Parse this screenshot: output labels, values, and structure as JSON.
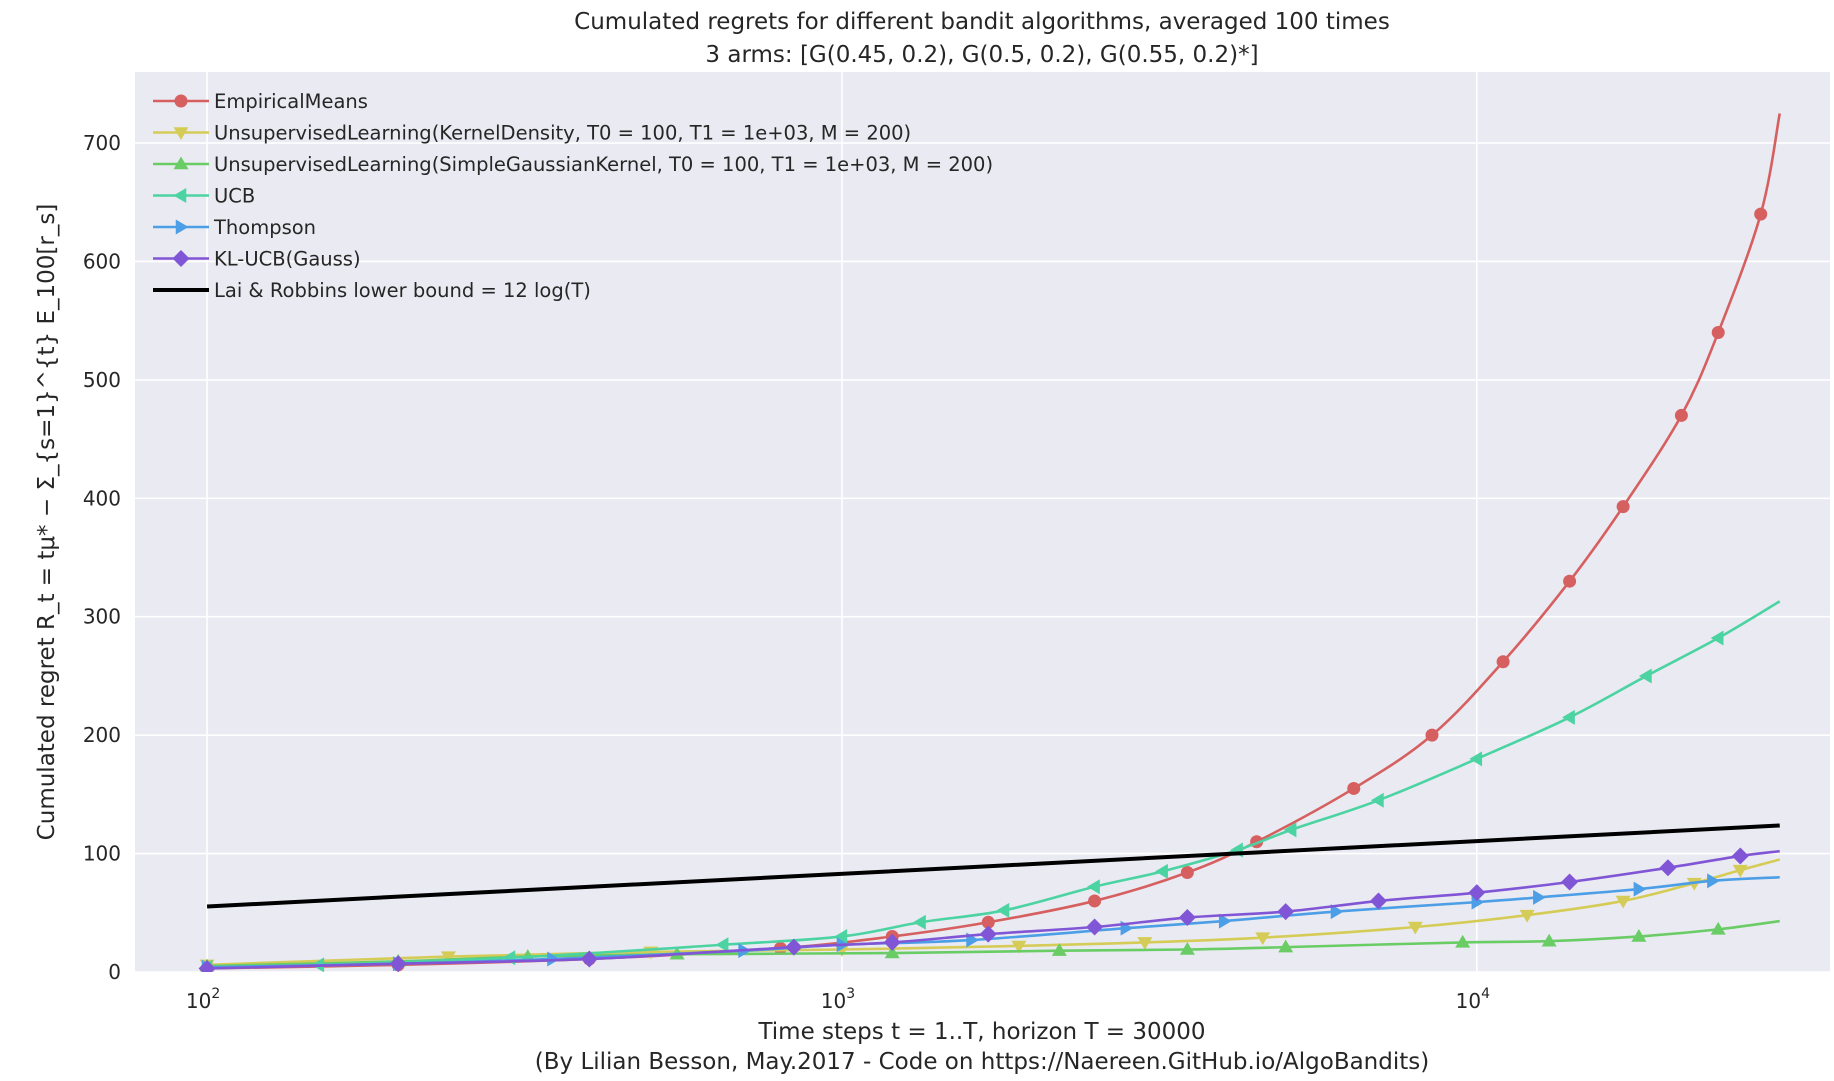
{
  "chart_data": {
    "type": "line",
    "title": "Cumulated regrets for different bandit algorithms, averaged 100 times",
    "subtitle": "3 arms: [G(0.45, 0.2), G(0.5, 0.2), G(0.55, 0.2)*]",
    "xlabel": "Time steps t = 1..T, horizon T = 30000",
    "xlabel_note": "(By Lilian Besson, May.2017 - Code on https://Naereen.GitHub.io/AlgoBandits)",
    "ylabel": "Cumulated regret R_t = tμ* − Σ_{s=1}^{t} E_100[r_s]",
    "x_scale": "log",
    "xlim": [
      77,
      36000
    ],
    "ylim": [
      0,
      760
    ],
    "x_ticks": [
      {
        "value": 100,
        "base": "10",
        "exp": "2"
      },
      {
        "value": 1000,
        "base": "10",
        "exp": "3"
      },
      {
        "value": 10000,
        "base": "10",
        "exp": "4"
      }
    ],
    "y_ticks": [
      0,
      100,
      200,
      300,
      400,
      500,
      600,
      700
    ],
    "grid": true,
    "legend_position": "top-left",
    "series": [
      {
        "name": "EmpiricalMeans",
        "color": "#D65F5F",
        "marker": "circle",
        "points": [
          [
            100,
            3
          ],
          [
            200,
            6
          ],
          [
            400,
            11
          ],
          [
            800,
            20
          ],
          [
            1200,
            30
          ],
          [
            1700,
            42
          ],
          [
            2500,
            60
          ],
          [
            3500,
            84
          ],
          [
            4500,
            110
          ],
          [
            6400,
            155
          ],
          [
            8500,
            200
          ],
          [
            11000,
            262
          ],
          [
            14000,
            330
          ],
          [
            17000,
            393
          ],
          [
            21000,
            470
          ],
          [
            24000,
            540
          ],
          [
            28000,
            640
          ],
          [
            30000,
            725
          ]
        ]
      },
      {
        "name": "UnsupervisedLearning(KernelDensity, T0 = 100, T1 = 1e+03, M = 200)",
        "color": "#D5CC57",
        "marker": "triangle-down",
        "points": [
          [
            100,
            6
          ],
          [
            240,
            13
          ],
          [
            500,
            17
          ],
          [
            1000,
            19
          ],
          [
            1900,
            22
          ],
          [
            3000,
            25
          ],
          [
            4600,
            29
          ],
          [
            8000,
            38
          ],
          [
            12000,
            48
          ],
          [
            17000,
            60
          ],
          [
            22000,
            75
          ],
          [
            26000,
            86
          ],
          [
            30000,
            95
          ]
        ]
      },
      {
        "name": "UnsupervisedLearning(SimpleGaussianKernel, T0 = 100, T1 = 1e+03, M = 200)",
        "color": "#6ACC65",
        "marker": "triangle-up",
        "points": [
          [
            100,
            5
          ],
          [
            200,
            9
          ],
          [
            320,
            13
          ],
          [
            550,
            15
          ],
          [
            1200,
            16
          ],
          [
            2200,
            18
          ],
          [
            3500,
            19
          ],
          [
            5000,
            21
          ],
          [
            9500,
            25
          ],
          [
            13000,
            26
          ],
          [
            18000,
            30
          ],
          [
            24000,
            36
          ],
          [
            30000,
            43
          ]
        ]
      },
      {
        "name": "UCB",
        "color": "#4CD3A2",
        "marker": "triangle-left",
        "points": [
          [
            100,
            4
          ],
          [
            150,
            6
          ],
          [
            300,
            12
          ],
          [
            650,
            23
          ],
          [
            1000,
            30
          ],
          [
            1330,
            42
          ],
          [
            1800,
            52
          ],
          [
            2500,
            72
          ],
          [
            3200,
            85
          ],
          [
            4200,
            103
          ],
          [
            5100,
            120
          ],
          [
            7000,
            145
          ],
          [
            10000,
            180
          ],
          [
            14000,
            215
          ],
          [
            18500,
            250
          ],
          [
            24000,
            282
          ],
          [
            30000,
            313
          ]
        ]
      },
      {
        "name": "Thompson",
        "color": "#4C9FE6",
        "marker": "triangle-right",
        "points": [
          [
            100,
            4
          ],
          [
            200,
            7
          ],
          [
            350,
            11
          ],
          [
            700,
            18
          ],
          [
            1000,
            23
          ],
          [
            1600,
            27
          ],
          [
            2800,
            37
          ],
          [
            4000,
            43
          ],
          [
            6000,
            51
          ],
          [
            10000,
            59
          ],
          [
            12500,
            63
          ],
          [
            18000,
            70
          ],
          [
            23500,
            77
          ],
          [
            30000,
            80
          ]
        ]
      },
      {
        "name": "KL-UCB(Gauss)",
        "color": "#8156D6",
        "marker": "diamond",
        "points": [
          [
            100,
            3
          ],
          [
            200,
            7
          ],
          [
            400,
            11
          ],
          [
            840,
            21
          ],
          [
            1200,
            25
          ],
          [
            1700,
            32
          ],
          [
            2500,
            38
          ],
          [
            3500,
            46
          ],
          [
            5000,
            51
          ],
          [
            7000,
            60
          ],
          [
            10000,
            67
          ],
          [
            14000,
            76
          ],
          [
            20000,
            88
          ],
          [
            26000,
            98
          ],
          [
            30000,
            102
          ]
        ]
      },
      {
        "name": "Lai & Robbins lower bound = 12 log(T)",
        "color": "#000000",
        "marker": "none",
        "points": [
          [
            100,
            55.3
          ],
          [
            30000,
            123.7
          ]
        ]
      }
    ]
  }
}
